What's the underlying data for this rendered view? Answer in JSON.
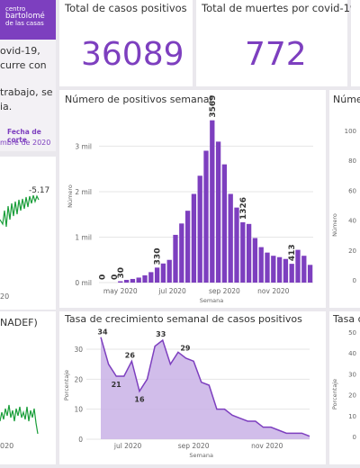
{
  "brand": {
    "line1": "centro",
    "line2": "bartolomé",
    "line3": "de las casas",
    "color": "#7d3fbf"
  },
  "intro": {
    "lines": [
      "ovid-19,",
      "curre con",
      "trabajo, se",
      "ia."
    ]
  },
  "cutoff": {
    "label": "Fecha de corte",
    "value": "mbre de 2020"
  },
  "left_mini": {
    "value_label": "-5.17",
    "x_tick": "20"
  },
  "left_bottom": {
    "title": "NADEF)",
    "x_tick": "020"
  },
  "kpi_cases": {
    "title": "Total de casos positivos",
    "value": "36089"
  },
  "kpi_deaths": {
    "title": "Total de muertes por covid-19",
    "value": "772"
  },
  "right_top": {
    "title": "Núme",
    "y_ticks": [
      "100",
      "80",
      "60",
      "40",
      "20",
      "0"
    ],
    "y_label": "Número"
  },
  "right_bottom": {
    "title": "Tasa d",
    "y_ticks": [
      "50",
      "40",
      "30",
      "20",
      "10",
      "0"
    ],
    "y_label": "Porcentaje"
  },
  "colors": {
    "accent": "#7d3fbf",
    "bar": "#7d3fbf",
    "area": "#c9b2e6",
    "line": "#7d3fbf",
    "green": "#1a9e3a"
  },
  "weekly_chart": {
    "title": "Número de positivos semanal",
    "y_label": "Número",
    "x_label": "Semana",
    "y_ticks": [
      "3 mil",
      "2 mil",
      "1 mil",
      "0 mil"
    ],
    "x_ticks": [
      "may 2020",
      "jul 2020",
      "sep 2020",
      "nov 2020"
    ],
    "data_labels": [
      "0",
      "0",
      "30",
      "330",
      "3569",
      "1326",
      "413"
    ]
  },
  "growth_chart": {
    "title": "Tasa de crecimiento semanal de casos positivos",
    "y_label": "Porcentaje",
    "x_label": "Semana",
    "y_ticks": [
      "30",
      "20",
      "10",
      "0"
    ],
    "x_ticks": [
      "jul 2020",
      "sep 2020",
      "nov 2020"
    ],
    "data_labels": [
      "34",
      "21",
      "26",
      "16",
      "33",
      "29"
    ]
  },
  "chart_data": [
    {
      "type": "bar",
      "title": "Número de positivos semanal",
      "xlabel": "Semana",
      "ylabel": "Número",
      "ylim": [
        0,
        3600
      ],
      "x_ticks": [
        "may 2020",
        "jul 2020",
        "sep 2020",
        "nov 2020"
      ],
      "values": [
        0,
        0,
        0,
        30,
        60,
        80,
        110,
        160,
        230,
        330,
        420,
        500,
        1050,
        1300,
        1580,
        1950,
        2350,
        2900,
        3569,
        3100,
        2600,
        1950,
        1650,
        1326,
        1290,
        980,
        780,
        660,
        590,
        560,
        520,
        413,
        720,
        590,
        390
      ]
    },
    {
      "type": "area",
      "title": "Tasa de crecimiento semanal de casos positivos",
      "xlabel": "Semana",
      "ylabel": "Porcentaje",
      "ylim": [
        0,
        35
      ],
      "x_ticks": [
        "jul 2020",
        "sep 2020",
        "nov 2020"
      ],
      "values": [
        34,
        25,
        21,
        21,
        26,
        16,
        20,
        31,
        33,
        25,
        29,
        27,
        26,
        19,
        18,
        10,
        10,
        8,
        7,
        6,
        6,
        4,
        4,
        3,
        2,
        2,
        2,
        1
      ]
    }
  ]
}
